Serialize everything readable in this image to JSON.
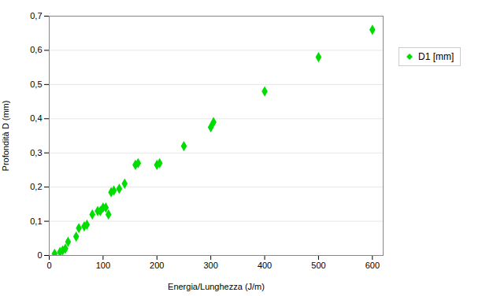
{
  "chart_data": {
    "type": "scatter",
    "x": [
      10,
      20,
      25,
      30,
      35,
      50,
      55,
      65,
      70,
      80,
      90,
      95,
      100,
      105,
      110,
      115,
      120,
      130,
      140,
      160,
      165,
      200,
      205,
      250,
      300,
      305,
      400,
      500,
      600
    ],
    "series": [
      {
        "name": "D1 [mm]",
        "color": "#00DD00",
        "marker": "diamond",
        "values": [
          0.005,
          0.01,
          0.015,
          0.02,
          0.04,
          0.055,
          0.08,
          0.085,
          0.09,
          0.12,
          0.13,
          0.13,
          0.14,
          0.14,
          0.12,
          0.185,
          0.19,
          0.195,
          0.21,
          0.265,
          0.27,
          0.265,
          0.27,
          0.32,
          0.375,
          0.39,
          0.48,
          0.58,
          0.66
        ]
      }
    ],
    "xlabel": "Energia/Lunghezza (J/m)",
    "ylabel": "Profondità D (mm)",
    "xlim": [
      0,
      620
    ],
    "ylim": [
      0,
      0.7
    ],
    "xticks": [
      0,
      100,
      200,
      300,
      400,
      500,
      600
    ],
    "yticks": [
      0,
      {
        "value": 0.1,
        "label": "0,1"
      },
      {
        "value": 0.2,
        "label": "0,2"
      },
      {
        "value": 0.3,
        "label": "0,3"
      },
      {
        "value": 0.4,
        "label": "0,4"
      },
      {
        "value": 0.5,
        "label": "0,5"
      },
      {
        "value": 0.6,
        "label": "0,6"
      },
      {
        "value": 0.7,
        "label": "0,7"
      }
    ],
    "grid": "y",
    "legend": "right"
  }
}
